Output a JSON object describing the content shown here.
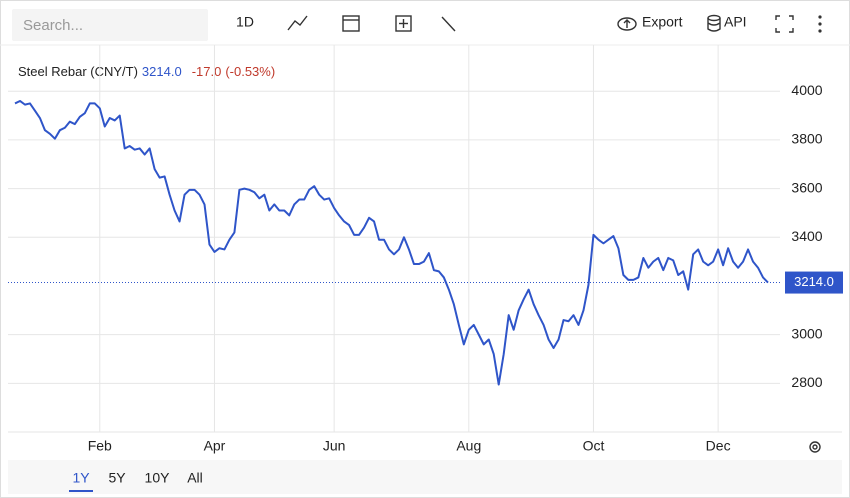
{
  "toolbar": {
    "search_placeholder": "Search...",
    "interval": "1D",
    "export": "Export",
    "api": "API"
  },
  "ranges": [
    "1Y",
    "5Y",
    "10Y",
    "All"
  ],
  "chart_data": {
    "type": "line",
    "series": [
      {
        "name": "Steel Rebar (CNY/T)",
        "color": "#2f55c9",
        "values": [
          3950,
          3960,
          3945,
          3950,
          3920,
          3890,
          3840,
          3825,
          3805,
          3840,
          3850,
          3875,
          3865,
          3895,
          3910,
          3950,
          3950,
          3930,
          3855,
          3890,
          3880,
          3900,
          3765,
          3775,
          3760,
          3765,
          3740,
          3765,
          3680,
          3645,
          3650,
          3575,
          3510,
          3465,
          3575,
          3595,
          3595,
          3575,
          3535,
          3370,
          3340,
          3355,
          3350,
          3390,
          3420,
          3595,
          3600,
          3595,
          3585,
          3560,
          3575,
          3510,
          3535,
          3510,
          3510,
          3490,
          3535,
          3555,
          3555,
          3595,
          3610,
          3575,
          3555,
          3560,
          3520,
          3490,
          3465,
          3450,
          3410,
          3410,
          3440,
          3480,
          3465,
          3390,
          3390,
          3350,
          3330,
          3350,
          3400,
          3350,
          3290,
          3290,
          3300,
          3335,
          3265,
          3260,
          3235,
          3185,
          3125,
          3040,
          2960,
          3020,
          3040,
          3000,
          2960,
          2980,
          2920,
          2795,
          2920,
          3080,
          3020,
          3100,
          3145,
          3185,
          3125,
          3080,
          3040,
          2980,
          2945,
          2980,
          3060,
          3055,
          3080,
          3040,
          3100,
          3205,
          3410,
          3390,
          3375,
          3390,
          3405,
          3355,
          3245,
          3225,
          3225,
          3235,
          3315,
          3275,
          3300,
          3315,
          3265,
          3315,
          3305,
          3245,
          3260,
          3185,
          3330,
          3350,
          3300,
          3285,
          3300,
          3350,
          3285,
          3355,
          3300,
          3275,
          3300,
          3350,
          3300,
          3275,
          3235,
          3214
        ]
      }
    ],
    "current": {
      "price": "3214.0",
      "change": "-17.0",
      "change_pct": "(-0.53%)"
    },
    "categories": [
      null,
      null,
      null,
      null,
      null,
      null,
      null,
      null,
      null,
      null,
      null,
      null,
      null,
      null,
      null,
      null,
      null,
      "Feb",
      null,
      null,
      null,
      null,
      null,
      null,
      null,
      null,
      null,
      null,
      null,
      null,
      null,
      null,
      null,
      null,
      null,
      null,
      null,
      null,
      null,
      null,
      "Apr",
      null,
      null,
      null,
      null,
      null,
      null,
      null,
      null,
      null,
      null,
      null,
      null,
      null,
      null,
      null,
      null,
      null,
      null,
      null,
      null,
      null,
      null,
      null,
      "Jun",
      null,
      null,
      null,
      null,
      null,
      null,
      null,
      null,
      null,
      null,
      null,
      null,
      null,
      null,
      null,
      null,
      null,
      null,
      null,
      null,
      null,
      null,
      null,
      null,
      null,
      null,
      "Aug",
      null,
      null,
      null,
      null,
      null,
      null,
      null,
      null,
      null,
      null,
      null,
      null,
      null,
      null,
      null,
      null,
      null,
      null,
      null,
      null,
      null,
      null,
      null,
      null,
      "Oct",
      null,
      null,
      null,
      null,
      null,
      null,
      null,
      null,
      null,
      null,
      null,
      null,
      null,
      null,
      null,
      null,
      null,
      null,
      null,
      null,
      null,
      null,
      null,
      null,
      "Dec",
      null,
      null,
      null,
      null,
      null,
      null,
      null,
      null,
      null,
      null
    ],
    "ylim": [
      2600,
      4190
    ],
    "yticks": [
      2800,
      3000,
      3400,
      3600,
      3800,
      4000
    ],
    "grid": true
  }
}
